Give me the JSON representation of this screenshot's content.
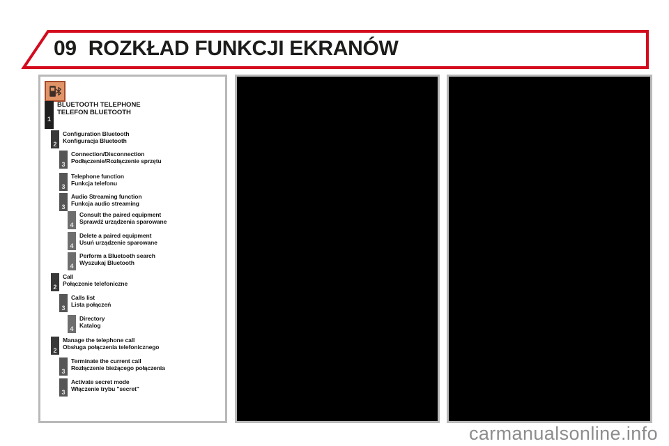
{
  "header": {
    "chapter_number": "09",
    "title": "ROZKŁAD FUNKCJI EKRANÓW"
  },
  "watermark": "carmanualsonline.info",
  "colors": {
    "banner_red": "#d40a1e",
    "panel_border": "#b9b9b9",
    "panel_screen_bg": "#000000",
    "icon_bg": "#e09468",
    "icon_border": "#a44a2a"
  },
  "menu": {
    "icon": "bluetooth-phone-icon",
    "items": [
      {
        "level": 1,
        "en": "BLUETOOTH TELEPHONE",
        "pl": "TELEFON BLUETOOTH"
      },
      {
        "level": 2,
        "en": "Configuration Bluetooth",
        "pl": "Konfiguracja Bluetooth"
      },
      {
        "level": 3,
        "en": "Connection/Disconnection",
        "pl": "Podłączenie/Rozłączenie sprzętu"
      },
      {
        "level": 3,
        "en": "Telephone function",
        "pl": "Funkcja telefonu"
      },
      {
        "level": 3,
        "en": "Audio Streaming function",
        "pl": "Funkcja audio streaming"
      },
      {
        "level": 4,
        "en": "Consult the paired equipment",
        "pl": "Sprawdź urządzenia sparowane"
      },
      {
        "level": 4,
        "en": "Delete a paired equipment",
        "pl": "Usuń urządzenie sparowane"
      },
      {
        "level": 4,
        "en": "Perform a Bluetooth search",
        "pl": "Wyszukaj Bluetooth"
      },
      {
        "level": 2,
        "en": "Call",
        "pl": "Połączenie telefoniczne"
      },
      {
        "level": 3,
        "en": "Calls list",
        "pl": "Lista połączeń"
      },
      {
        "level": 4,
        "en": "Directory",
        "pl": "Katalog"
      },
      {
        "level": 2,
        "en": "Manage the telephone call",
        "pl": "Obsługa połączenia telefonicznego"
      },
      {
        "level": 3,
        "en": "Terminate the current call",
        "pl": "Rozłączenie bieżącego połączenia"
      },
      {
        "level": 3,
        "en": "Activate secret mode",
        "pl": "Włączenie trybu \"secret\""
      }
    ]
  }
}
